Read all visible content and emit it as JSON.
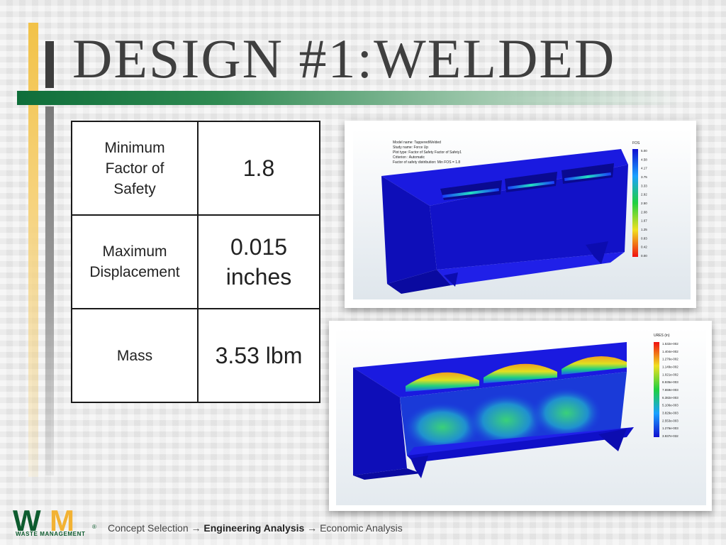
{
  "slide": {
    "title": "DESIGN #1:WELDED"
  },
  "table": {
    "rows": [
      {
        "label": "Minimum\nFactor of\nSafety",
        "value": "1.8"
      },
      {
        "label": "Maximum\nDisplacement",
        "value": "0.015\ninches"
      },
      {
        "label": "Mass",
        "value": "3.53 lbm"
      }
    ]
  },
  "fos_plot": {
    "info": [
      "Model name: TapperedWelded",
      "Study name: Force Up",
      "Plot type: Factor of Safety Factor of Safety1",
      "Criterion : Automatic",
      "Factor of safety distribution: Min FOS = 1.8"
    ],
    "legend_title": "FOS",
    "legend_values": [
      "5.00",
      "4.58",
      "4.17",
      "3.75",
      "3.33",
      "2.92",
      "2.50",
      "2.08",
      "1.67",
      "1.25",
      "0.83",
      "0.42",
      "0.00"
    ]
  },
  "ures_plot": {
    "legend_title": "URES (in)",
    "legend_values": [
      "1.532e-002",
      "1.404e-002",
      "1.276e-002",
      "1.149e-002",
      "1.021e-002",
      "8.935e-003",
      "7.659e-003",
      "6.382e-003",
      "5.106e-003",
      "3.829e-003",
      "2.553e-003",
      "1.276e-003",
      "3.937e-032"
    ]
  },
  "footer": {
    "step1": "Concept Selection",
    "arrow": "→",
    "step2": "Engineering Analysis",
    "step3": "Economic Analysis"
  },
  "logo": {
    "letters": "WM",
    "name": "WASTE MANAGEMENT",
    "registered": "®",
    "colors": {
      "green": "#0d5b2e",
      "yellow": "#f2b233"
    }
  }
}
